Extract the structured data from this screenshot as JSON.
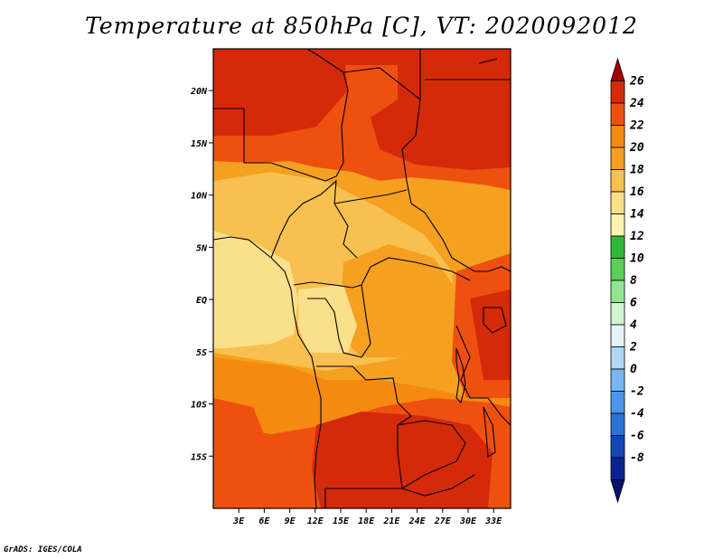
{
  "title": "Temperature at 850hPa [C], VT: 2020092012",
  "credit": "GrADS: IGES/COLA",
  "map": {
    "region": "Central Africa",
    "lon_range": [
      0,
      35
    ],
    "lat_range": [
      -20,
      24
    ],
    "lon_ticks": [
      "3E",
      "6E",
      "9E",
      "12E",
      "15E",
      "18E",
      "21E",
      "24E",
      "27E",
      "30E",
      "33E"
    ],
    "lon_values": [
      3,
      6,
      9,
      12,
      15,
      18,
      21,
      24,
      27,
      30,
      33
    ],
    "lat_ticks": [
      "20N",
      "15N",
      "10N",
      "5N",
      "EQ",
      "5S",
      "10S",
      "15S"
    ],
    "lat_values": [
      20,
      15,
      10,
      5,
      0,
      -5,
      -10,
      -15
    ]
  },
  "colorbar": {
    "labels": [
      "26",
      "24",
      "22",
      "20",
      "18",
      "16",
      "14",
      "12",
      "10",
      "8",
      "6",
      "4",
      "2",
      "0",
      "-2",
      "-4",
      "-6",
      "-8"
    ],
    "colors": [
      "#a00000",
      "#d42a0a",
      "#ee5010",
      "#f58a10",
      "#f5a020",
      "#f8c050",
      "#fae08a",
      "#fff5b0",
      "#2eb83a",
      "#58d05a",
      "#90e690",
      "#d0f5d0",
      "#e6f3fa",
      "#b0d8f5",
      "#78b8f0",
      "#4a96ea",
      "#2a72d8",
      "#1446b8",
      "#0a2494",
      "#061270"
    ]
  }
}
